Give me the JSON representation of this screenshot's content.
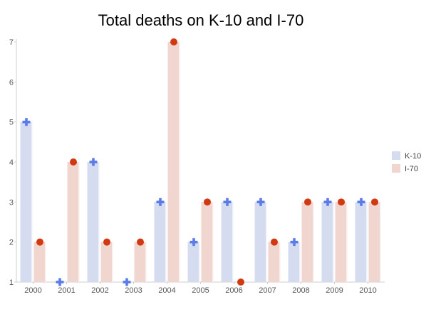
{
  "chart_data": {
    "type": "bar",
    "title": "Total deaths on K-10 and I-70",
    "xlabel": "",
    "ylabel": "",
    "categories": [
      "2000",
      "2001",
      "2002",
      "2003",
      "2004",
      "2005",
      "2006",
      "2007",
      "2008",
      "2009",
      "2010"
    ],
    "series": [
      {
        "name": "K-10",
        "values": [
          5,
          1,
          4,
          1,
          3,
          2,
          3,
          3,
          2,
          3,
          3
        ],
        "bar_color": "#d5dcef",
        "marker_color": "#5b7be8",
        "marker": "plus"
      },
      {
        "name": "I-70",
        "values": [
          2,
          4,
          2,
          2,
          7,
          3,
          1,
          2,
          3,
          3,
          3
        ],
        "bar_color": "#f1d5cf",
        "marker_color": "#d13a10",
        "marker": "circle"
      }
    ],
    "ylim": [
      1,
      7
    ],
    "yticks": [
      "1",
      "2",
      "3",
      "4",
      "5",
      "6",
      "7"
    ],
    "grid": false,
    "legend_position": "right"
  }
}
